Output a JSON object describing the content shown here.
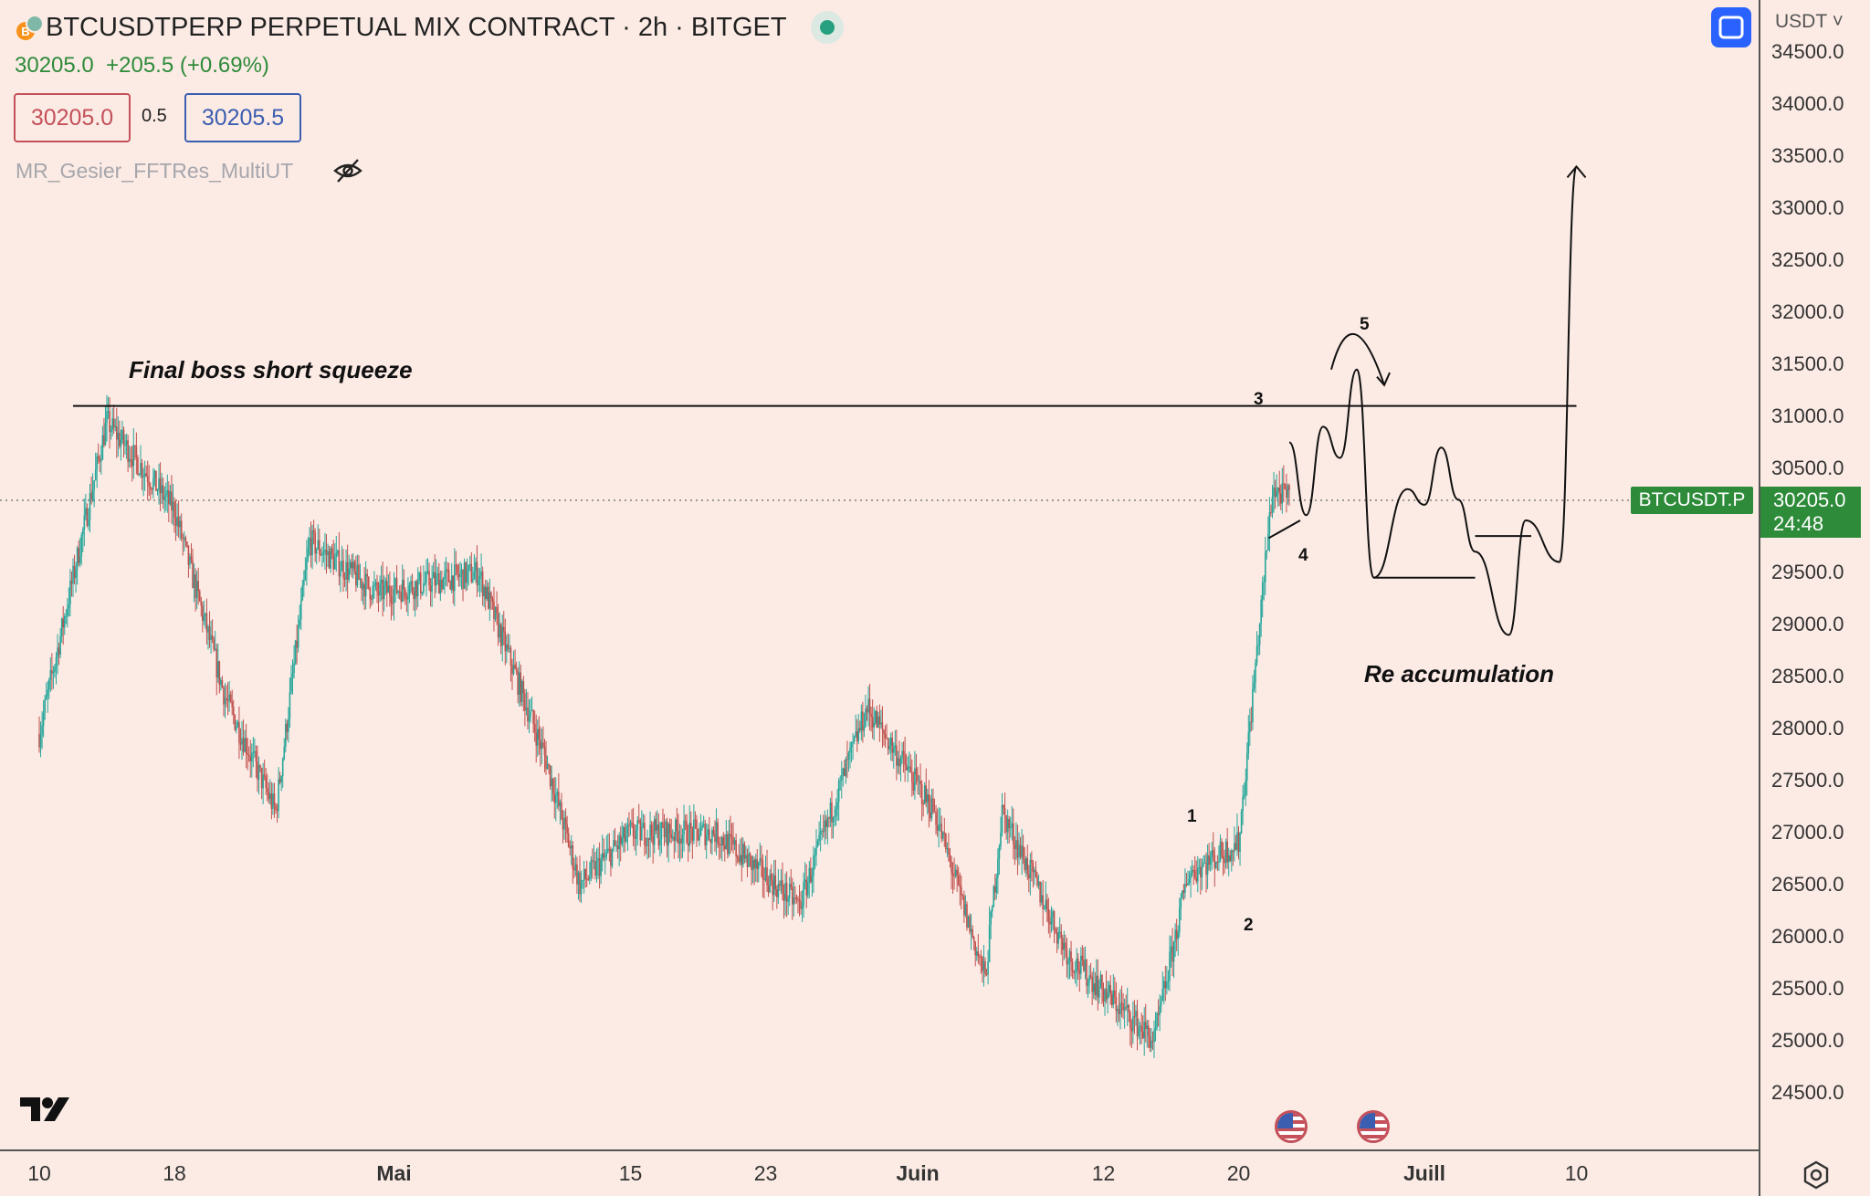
{
  "header": {
    "symbol_title": "BTCUSDTPERP PERPETUAL MIX CONTRACT · 2h · BITGET",
    "last_price": "30205.0",
    "change": "+205.5 (+0.69%)",
    "bid": "30205.0",
    "spread": "0.5",
    "ask": "30205.5",
    "indicator_name": "MR_Gesier_FFTRes_MultiUT",
    "coin_glyph": "B"
  },
  "price_axis": {
    "currency": "USDT",
    "ticks": [
      "34500.0",
      "34000.0",
      "33500.0",
      "33000.0",
      "32500.0",
      "32000.0",
      "31500.0",
      "31000.0",
      "30500.0",
      "30000.0",
      "29500.0",
      "29000.0",
      "28500.0",
      "28000.0",
      "27500.0",
      "27000.0",
      "26500.0",
      "26000.0",
      "25500.0",
      "25000.0",
      "24500.0"
    ],
    "current_symbol": "BTCUSDT.P",
    "current_price": "30205.0",
    "countdown": "24:48"
  },
  "time_axis": {
    "labels": [
      "10",
      "18",
      "Mai",
      "15",
      "23",
      "Juin",
      "12",
      "20",
      "Juill",
      "10"
    ]
  },
  "annotations": {
    "top_text": "Final boss short squeeze",
    "bottom_text": "Re accumulation",
    "wave_labels": [
      "1",
      "2",
      "3",
      "4",
      "5"
    ]
  },
  "colors": {
    "background": "#fcebe5",
    "up_candle": "#26a69a",
    "down_candle": "#c0504d",
    "price_tag": "#2e8b3a",
    "accent": "#2962ff"
  },
  "icons": [
    "bitcoin-icon",
    "status-dot-icon",
    "eye-off-icon",
    "expand-icon",
    "chevron-down-icon",
    "tradingview-logo-icon",
    "us-flag-icon",
    "settings-icon"
  ],
  "chart_data": {
    "type": "candlestick",
    "timeframe": "2h",
    "x_range": [
      "2023-04-10",
      "2023-07-10"
    ],
    "ylim": [
      24500,
      34500
    ],
    "key_points": [
      {
        "x": "2023-04-10",
        "y": 27950
      },
      {
        "x": "2023-04-14",
        "y": 30950
      },
      {
        "x": "2023-04-18",
        "y": 30100
      },
      {
        "x": "2023-04-21",
        "y": 28300
      },
      {
        "x": "2023-04-24",
        "y": 27200
      },
      {
        "x": "2023-04-26",
        "y": 29800
      },
      {
        "x": "2023-04-30",
        "y": 29300
      },
      {
        "x": "2023-05-06",
        "y": 29500
      },
      {
        "x": "2023-05-10",
        "y": 27700
      },
      {
        "x": "2023-05-12",
        "y": 26500
      },
      {
        "x": "2023-05-15",
        "y": 27000
      },
      {
        "x": "2023-05-20",
        "y": 27000
      },
      {
        "x": "2023-05-25",
        "y": 26300
      },
      {
        "x": "2023-05-29",
        "y": 28200
      },
      {
        "x": "2023-06-02",
        "y": 27200
      },
      {
        "x": "2023-06-05",
        "y": 25600
      },
      {
        "x": "2023-06-06",
        "y": 27200
      },
      {
        "x": "2023-06-10",
        "y": 25800
      },
      {
        "x": "2023-06-15",
        "y": 25000
      },
      {
        "x": "2023-06-17",
        "y": 26600
      },
      {
        "x": "2023-06-20",
        "y": 26900
      },
      {
        "x": "2023-06-22",
        "y": 30300
      },
      {
        "x": "2023-06-23",
        "y": 30205
      }
    ],
    "resistance": 31100,
    "support": 29450,
    "projection": [
      {
        "x": "2023-06-23",
        "y": 30750
      },
      {
        "x": "2023-06-24",
        "y": 30050
      },
      {
        "x": "2023-06-25",
        "y": 30900
      },
      {
        "x": "2023-06-26",
        "y": 30600
      },
      {
        "x": "2023-06-27",
        "y": 31450
      },
      {
        "x": "2023-06-28",
        "y": 29450
      },
      {
        "x": "2023-06-30",
        "y": 30300
      },
      {
        "x": "2023-07-01",
        "y": 30150
      },
      {
        "x": "2023-07-02",
        "y": 30700
      },
      {
        "x": "2023-07-03",
        "y": 30200
      },
      {
        "x": "2023-07-04",
        "y": 29700
      },
      {
        "x": "2023-07-06",
        "y": 28900
      },
      {
        "x": "2023-07-07",
        "y": 30000
      },
      {
        "x": "2023-07-09",
        "y": 29600
      },
      {
        "x": "2023-07-10",
        "y": 33400
      }
    ]
  }
}
